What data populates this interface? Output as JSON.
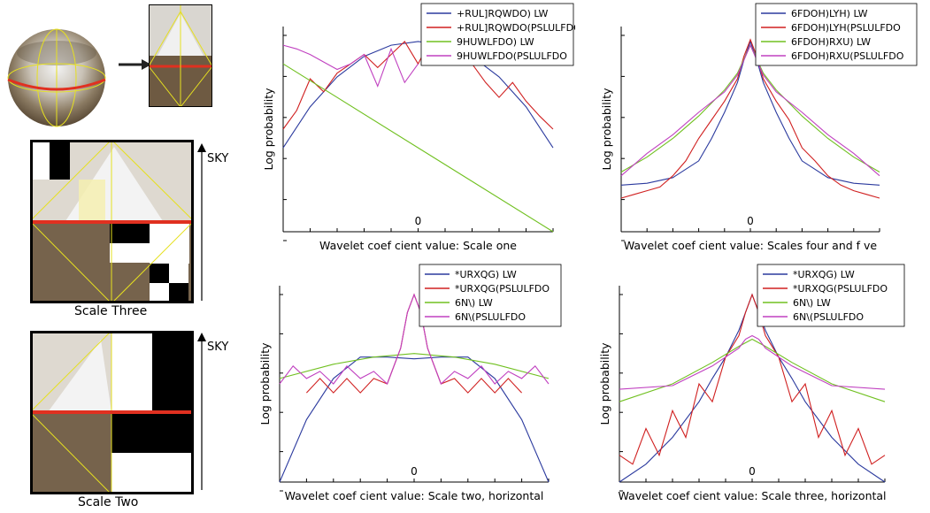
{
  "left": {
    "scale_three_label": "Scale Three",
    "scale_two_label": "Scale Two",
    "sky_label": "SKY"
  },
  "chart_data": [
    {
      "type": "line",
      "xlabel": "Wavelet coef  cient value: Scale one",
      "ylabel": "Log probability",
      "x_tick_label": "0",
      "xlim": [
        -1,
        1
      ],
      "ylim": [
        -1,
        0.1
      ],
      "legend_position": "top-right",
      "series": [
        {
          "name": "+RUL]RQWDO) LW",
          "color": "#2b3a9e",
          "x": [
            -1,
            -0.8,
            -0.6,
            -0.4,
            -0.2,
            0,
            0.2,
            0.4,
            0.6,
            0.8,
            1
          ],
          "y": [
            -0.55,
            -0.33,
            -0.17,
            -0.06,
            0.0,
            0.02,
            0.0,
            -0.06,
            -0.17,
            -0.33,
            -0.55
          ]
        },
        {
          "name": "+RUL]RQWDO(PSLULFDO",
          "color": "#d02020",
          "x": [
            -1,
            -0.9,
            -0.8,
            -0.7,
            -0.6,
            -0.5,
            -0.4,
            -0.3,
            -0.2,
            -0.1,
            0,
            0.05,
            0.1,
            0.15,
            0.2,
            0.3,
            0.4,
            0.5,
            0.6,
            0.7,
            0.8,
            0.9,
            1
          ],
          "y": [
            -0.45,
            -0.35,
            -0.18,
            -0.25,
            -0.15,
            -0.1,
            -0.05,
            -0.12,
            -0.05,
            0.02,
            -0.1,
            -0.03,
            0.06,
            -0.05,
            -0.02,
            -0.03,
            -0.1,
            -0.2,
            -0.28,
            -0.2,
            -0.3,
            -0.38,
            -0.45
          ]
        },
        {
          "name": "9HUWLFDO) LW",
          "color": "#70c020",
          "x": [
            -1,
            1
          ],
          "y": [
            -0.1,
            -1.0
          ]
        },
        {
          "name": "9HUWLFDO(PSLULFDO",
          "color": "#c040c0",
          "x": [
            -1,
            -0.9,
            -0.8,
            -0.7,
            -0.6,
            -0.5,
            -0.4,
            -0.3,
            -0.2,
            -0.1,
            0
          ],
          "y": [
            0.0,
            -0.02,
            -0.05,
            -0.09,
            -0.13,
            -0.1,
            -0.05,
            -0.22,
            -0.02,
            -0.2,
            -0.1
          ]
        }
      ]
    },
    {
      "type": "line",
      "xlabel": "Wavelet coef  cient value: Scales four and f ve",
      "ylabel": "Log probability",
      "x_tick_label": "0",
      "xlim": [
        -1,
        1
      ],
      "ylim": [
        -1,
        0.1
      ],
      "legend_position": "top-right",
      "series": [
        {
          "name": "6FDOH)LYH) LW",
          "color": "#2b3a9e",
          "x": [
            -1,
            -0.8,
            -0.6,
            -0.4,
            -0.3,
            -0.2,
            -0.1,
            -0.05,
            0,
            0.05,
            0.1,
            0.2,
            0.3,
            0.4,
            0.6,
            0.8,
            1
          ],
          "y": [
            -0.75,
            -0.74,
            -0.71,
            -0.62,
            -0.5,
            -0.36,
            -0.2,
            -0.08,
            0.02,
            -0.08,
            -0.2,
            -0.36,
            -0.5,
            -0.62,
            -0.71,
            -0.74,
            -0.75
          ]
        },
        {
          "name": "6FDOH)LYH(PSLULFDO",
          "color": "#d02020",
          "x": [
            -1,
            -0.9,
            -0.8,
            -0.7,
            -0.6,
            -0.5,
            -0.4,
            -0.3,
            -0.2,
            -0.1,
            -0.05,
            0,
            0.05,
            0.1,
            0.2,
            0.3,
            0.4,
            0.5,
            0.6,
            0.7,
            0.8,
            0.9,
            1
          ],
          "y": [
            -0.82,
            -0.8,
            -0.78,
            -0.76,
            -0.7,
            -0.62,
            -0.5,
            -0.4,
            -0.3,
            -0.18,
            -0.06,
            0.03,
            -0.06,
            -0.18,
            -0.3,
            -0.4,
            -0.55,
            -0.62,
            -0.7,
            -0.75,
            -0.78,
            -0.8,
            -0.82
          ]
        },
        {
          "name": "6FDOH)RXU) LW",
          "color": "#70c020",
          "x": [
            -1,
            -0.8,
            -0.6,
            -0.4,
            -0.2,
            -0.1,
            0,
            0.1,
            0.2,
            0.4,
            0.6,
            0.8,
            1
          ],
          "y": [
            -0.68,
            -0.6,
            -0.5,
            -0.38,
            -0.24,
            -0.15,
            0.0,
            -0.15,
            -0.24,
            -0.38,
            -0.5,
            -0.6,
            -0.68
          ]
        },
        {
          "name": "6FDOH)RXU(PSLULFDO",
          "color": "#c040c0",
          "x": [
            -1,
            -0.8,
            -0.6,
            -0.4,
            -0.2,
            -0.1,
            0,
            0.1,
            0.2,
            0.4,
            0.6,
            0.8,
            1
          ],
          "y": [
            -0.7,
            -0.58,
            -0.48,
            -0.36,
            -0.25,
            -0.16,
            0.0,
            -0.16,
            -0.25,
            -0.36,
            -0.48,
            -0.58,
            -0.7
          ]
        }
      ]
    },
    {
      "type": "line",
      "xlabel": "Wavelet coef  cient value: Scale two, horizontal",
      "ylabel": "Log probability",
      "x_tick_label": "0",
      "xlim": [
        -1,
        1
      ],
      "ylim": [
        -1,
        0.1
      ],
      "legend_position": "top-right",
      "series": [
        {
          "name": "*URXQG) LW",
          "color": "#2b3a9e",
          "x": [
            -1,
            -0.8,
            -0.6,
            -0.4,
            -0.2,
            0,
            0.2,
            0.4,
            0.6,
            0.8,
            1
          ],
          "y": [
            -1.0,
            -0.65,
            -0.42,
            -0.3,
            -0.3,
            -0.31,
            -0.3,
            -0.3,
            -0.42,
            -0.65,
            -1.0
          ]
        },
        {
          "name": "*URXQG(PSLULFDO",
          "color": "#d02020",
          "x": [
            -0.8,
            -0.7,
            -0.6,
            -0.5,
            -0.4,
            -0.3,
            -0.2,
            -0.1,
            -0.05,
            0,
            0.05,
            0.1,
            0.2,
            0.3,
            0.4,
            0.5,
            0.6,
            0.7,
            0.8
          ],
          "y": [
            -0.5,
            -0.42,
            -0.5,
            -0.42,
            -0.5,
            -0.42,
            -0.45,
            -0.25,
            -0.05,
            0.05,
            -0.05,
            -0.25,
            -0.45,
            -0.42,
            -0.5,
            -0.42,
            -0.5,
            -0.42,
            -0.5
          ]
        },
        {
          "name": "6N\\) LW",
          "color": "#70c020",
          "x": [
            -1,
            -0.6,
            -0.3,
            0,
            0.3,
            0.6,
            1
          ],
          "y": [
            -0.42,
            -0.34,
            -0.3,
            -0.28,
            -0.3,
            -0.34,
            -0.42
          ]
        },
        {
          "name": "6N\\(PSLULFDO",
          "color": "#c040c0",
          "x": [
            -1,
            -0.9,
            -0.8,
            -0.7,
            -0.6,
            -0.5,
            -0.4,
            -0.3,
            -0.2,
            -0.1,
            -0.05,
            0,
            0.05,
            0.1,
            0.2,
            0.3,
            0.4,
            0.5,
            0.6,
            0.7,
            0.8,
            0.9,
            1
          ],
          "y": [
            -0.45,
            -0.35,
            -0.42,
            -0.38,
            -0.45,
            -0.35,
            -0.42,
            -0.38,
            -0.45,
            -0.25,
            -0.05,
            0.05,
            -0.05,
            -0.25,
            -0.45,
            -0.38,
            -0.42,
            -0.35,
            -0.45,
            -0.38,
            -0.42,
            -0.35,
            -0.45
          ]
        }
      ]
    },
    {
      "type": "line",
      "xlabel": "Wavelet coef  cient value: Scale three, horizontal",
      "ylabel": "Log probability",
      "x_tick_label": "0",
      "xlim": [
        -1,
        1
      ],
      "ylim": [
        -1,
        0.1
      ],
      "legend_position": "top-right",
      "series": [
        {
          "name": "*URXQG) LW",
          "color": "#2b3a9e",
          "x": [
            -1,
            -0.8,
            -0.6,
            -0.4,
            -0.3,
            -0.2,
            -0.1,
            -0.05,
            0,
            0.05,
            0.1,
            0.2,
            0.3,
            0.4,
            0.6,
            0.8,
            1
          ],
          "y": [
            -1.0,
            -0.9,
            -0.75,
            -0.55,
            -0.42,
            -0.3,
            -0.15,
            -0.05,
            0.05,
            -0.05,
            -0.15,
            -0.3,
            -0.42,
            -0.55,
            -0.75,
            -0.9,
            -1.0
          ]
        },
        {
          "name": "*URXQG(PSLULFDO",
          "color": "#d02020",
          "x": [
            -1,
            -0.9,
            -0.8,
            -0.7,
            -0.6,
            -0.5,
            -0.4,
            -0.3,
            -0.2,
            -0.1,
            -0.05,
            0,
            0.05,
            0.1,
            0.2,
            0.3,
            0.4,
            0.5,
            0.6,
            0.7,
            0.8,
            0.9,
            1
          ],
          "y": [
            -0.85,
            -0.9,
            -0.7,
            -0.85,
            -0.6,
            -0.75,
            -0.45,
            -0.55,
            -0.3,
            -0.18,
            -0.05,
            0.05,
            -0.05,
            -0.18,
            -0.3,
            -0.55,
            -0.45,
            -0.75,
            -0.6,
            -0.85,
            -0.7,
            -0.9,
            -0.85
          ]
        },
        {
          "name": "6N\\) LW",
          "color": "#70c020",
          "x": [
            -1,
            -0.6,
            -0.3,
            -0.1,
            0,
            0.1,
            0.3,
            0.6,
            1
          ],
          "y": [
            -0.55,
            -0.45,
            -0.33,
            -0.24,
            -0.2,
            -0.24,
            -0.33,
            -0.45,
            -0.55
          ]
        },
        {
          "name": "6N\\(PSLULFDO",
          "color": "#c040c0",
          "x": [
            -1,
            -0.6,
            -0.3,
            -0.1,
            -0.05,
            0,
            0.05,
            0.1,
            0.3,
            0.6,
            1
          ],
          "y": [
            -0.48,
            -0.46,
            -0.35,
            -0.25,
            -0.2,
            -0.18,
            -0.2,
            -0.25,
            -0.35,
            -0.46,
            -0.48
          ]
        }
      ]
    }
  ]
}
